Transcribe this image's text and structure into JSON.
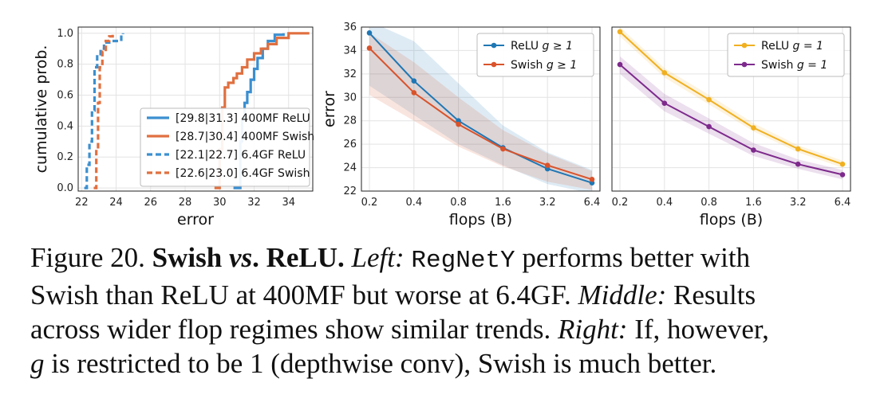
{
  "chart_data": [
    {
      "type": "line",
      "subtype": "cumulative-distribution",
      "xlabel": "error",
      "ylabel": "cumulative prob.",
      "xlim": [
        21.8,
        35.4
      ],
      "ylim": [
        -0.02,
        1.04
      ],
      "xticks": [
        "22",
        "24",
        "26",
        "28",
        "30",
        "32",
        "34"
      ],
      "yticks": [
        "0.0",
        "0.2",
        "0.4",
        "0.6",
        "0.8",
        "1.0"
      ],
      "grid": true,
      "legend_position": "lower-right",
      "series": [
        {
          "name": "[29.8|31.3] 400MF ReLU",
          "color": "#3b8fd0",
          "dash": "solid",
          "x": [
            30.8,
            31.2,
            31.3,
            31.45,
            31.6,
            31.8,
            32.0,
            32.2,
            32.5,
            32.8,
            33.2,
            33.7
          ],
          "y": [
            0.0,
            0.3,
            0.45,
            0.55,
            0.62,
            0.7,
            0.77,
            0.84,
            0.9,
            0.95,
            0.99,
            1.0
          ]
        },
        {
          "name": "[28.7|30.4] 400MF Swish",
          "color": "#e07040",
          "dash": "solid",
          "x": [
            29.7,
            30.0,
            30.15,
            30.3,
            30.5,
            30.8,
            31.0,
            31.3,
            31.6,
            32.0,
            32.4,
            32.8,
            33.3,
            34.0,
            35.2
          ],
          "y": [
            0.0,
            0.25,
            0.52,
            0.65,
            0.68,
            0.71,
            0.74,
            0.78,
            0.83,
            0.87,
            0.9,
            0.93,
            0.97,
            1.0,
            1.0
          ]
        },
        {
          "name": "[22.1|22.7] 6.4GF ReLU",
          "color": "#3b8fd0",
          "dash": "dashed",
          "x": [
            22.15,
            22.3,
            22.45,
            22.6,
            22.75,
            22.9,
            23.1,
            23.3,
            23.6,
            24.0,
            24.3,
            24.4
          ],
          "y": [
            0.0,
            0.15,
            0.3,
            0.5,
            0.78,
            0.85,
            0.9,
            0.94,
            0.95,
            0.95,
            0.99,
            1.0
          ]
        },
        {
          "name": "[22.6|23.0] 6.4GF Swish",
          "color": "#e07040",
          "dash": "dashed",
          "x": [
            22.7,
            22.85,
            22.95,
            23.05,
            23.2,
            23.4,
            23.6,
            23.8
          ],
          "y": [
            0.0,
            0.25,
            0.55,
            0.78,
            0.88,
            0.95,
            0.98,
            1.0
          ]
        }
      ]
    },
    {
      "type": "line",
      "xlabel": "flops (B)",
      "ylabel": "error",
      "categories": [
        "0.2",
        "0.4",
        "0.8",
        "1.6",
        "3.2",
        "6.4"
      ],
      "ylim": [
        22,
        36
      ],
      "yticks": [
        "22",
        "24",
        "26",
        "28",
        "30",
        "32",
        "34",
        "36"
      ],
      "grid": true,
      "legend_position": "top-right",
      "series": [
        {
          "name": "ReLU g ≥ 1",
          "legend_prefix": "ReLU",
          "legend_math": "g ≥ 1",
          "color": "#1f77b4",
          "values": [
            35.5,
            31.4,
            28.0,
            25.7,
            23.9,
            22.7
          ],
          "band_low": [
            31.0,
            28.5,
            26.0,
            24.2,
            22.6,
            21.8
          ],
          "band_high": [
            36.5,
            34.8,
            31.2,
            27.6,
            25.3,
            23.8
          ]
        },
        {
          "name": "Swish g ≥ 1",
          "legend_prefix": "Swish",
          "legend_math": "g ≥ 1",
          "color": "#d9532b",
          "values": [
            34.2,
            30.4,
            27.7,
            25.6,
            24.2,
            23.0
          ],
          "band_low": [
            30.2,
            28.0,
            25.8,
            24.1,
            22.8,
            22.1
          ],
          "band_high": [
            35.5,
            33.0,
            30.0,
            27.2,
            25.2,
            23.7
          ]
        }
      ]
    },
    {
      "type": "line",
      "xlabel": "flops (B)",
      "categories": [
        "0.2",
        "0.4",
        "0.8",
        "1.6",
        "3.2",
        "6.4"
      ],
      "ylim": [
        22,
        36
      ],
      "grid": true,
      "legend_position": "top-right",
      "series": [
        {
          "name": "ReLU g = 1",
          "legend_prefix": "ReLU",
          "legend_math": "g = 1",
          "color": "#f0b020",
          "values": [
            35.6,
            32.1,
            29.8,
            27.4,
            25.6,
            24.3
          ],
          "band_low": [
            35.2,
            31.7,
            29.4,
            27.1,
            25.3,
            24.0
          ],
          "band_high": [
            36.0,
            32.5,
            30.2,
            27.8,
            25.9,
            24.6
          ]
        },
        {
          "name": "Swish g = 1",
          "legend_prefix": "Swish",
          "legend_math": "g = 1",
          "color": "#7d2a8c",
          "values": [
            32.8,
            29.5,
            27.5,
            25.5,
            24.3,
            23.4
          ],
          "band_low": [
            32.0,
            28.8,
            26.9,
            25.0,
            23.9,
            23.0
          ],
          "band_high": [
            33.5,
            30.3,
            28.2,
            26.1,
            24.7,
            23.8
          ]
        }
      ]
    }
  ],
  "caption": {
    "lead": "Figure 20.",
    "title_a": "Swish",
    "title_vs": "vs",
    "title_b": ". ReLU.",
    "left_label": "Left:",
    "model_name": "RegNetY",
    "line1_rest": "performs better with",
    "line2": "Swish than ReLU at 400MF but worse at 6.4GF.",
    "middle_label": "Middle:",
    "line2_rest": "Results",
    "line3": "across wider flop regimes show similar trends.",
    "right_label": "Right:",
    "line3_rest": "If, however,",
    "g_var": "g",
    "line4_rest": "is restricted to be 1 (depthwise conv), Swish is much better."
  }
}
